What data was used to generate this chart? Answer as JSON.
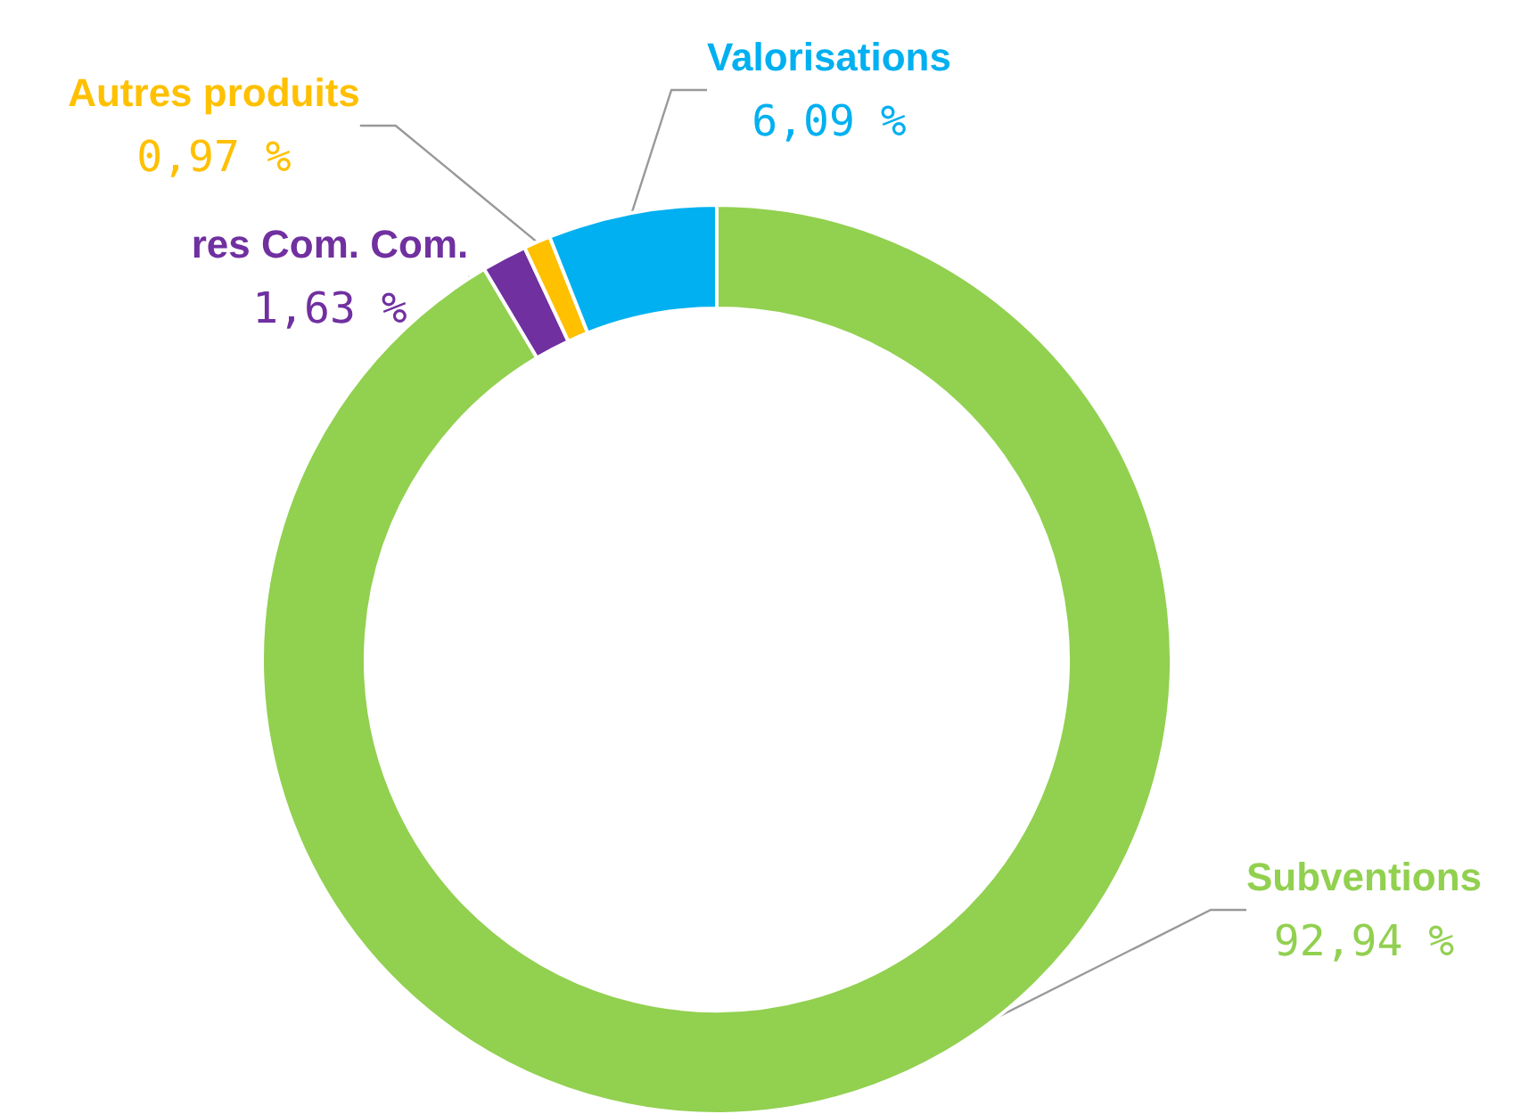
{
  "chart_data": {
    "type": "donut",
    "categories": [
      "Subventions",
      "res Com. Com.",
      "Autres produits",
      "Valorisations"
    ],
    "values": [
      92.94,
      1.63,
      0.97,
      6.09
    ],
    "value_labels": [
      "92,94 %",
      "1,63 %",
      "0,97 %",
      "6,09 %"
    ],
    "colors": [
      "#92d050",
      "#7030a0",
      "#ffc000",
      "#00b0f0"
    ]
  }
}
